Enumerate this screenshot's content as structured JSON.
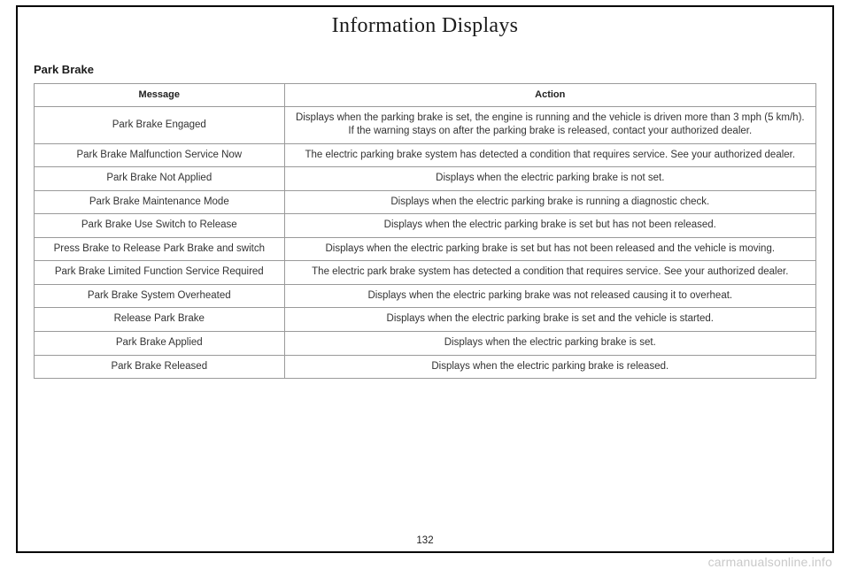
{
  "document": {
    "pageTitle": "Information Displays",
    "pageNumber": "132",
    "watermark": "carmanualsonline.info"
  },
  "section": {
    "title": "Park Brake",
    "table": {
      "headers": {
        "message": "Message",
        "action": "Action"
      },
      "rows": [
        {
          "message": "Park Brake Engaged",
          "action": "Displays when the parking brake is set, the engine is running and the vehicle is driven more than 3 mph (5 km/h). If the warning stays on after the parking brake is released, contact your authorized dealer."
        },
        {
          "message": "Park Brake Malfunction Service Now",
          "action": "The electric parking brake system has detected a condition that requires service. See your authorized dealer."
        },
        {
          "message": "Park Brake Not Applied",
          "action": "Displays when the electric parking brake is not set."
        },
        {
          "message": "Park Brake Maintenance Mode",
          "action": "Displays when the electric parking brake is running a diagnostic check."
        },
        {
          "message": "Park Brake Use Switch to Release",
          "action": "Displays when the electric parking brake is set but has not been released."
        },
        {
          "message": "Press Brake to Release Park Brake and switch",
          "action": "Displays when the electric parking brake is set but has not been released and the vehicle is moving."
        },
        {
          "message": "Park Brake Limited Function Service Required",
          "action": "The electric park brake system has detected a condition that requires service. See your authorized dealer."
        },
        {
          "message": "Park Brake System Overheated",
          "action": "Displays when the electric parking brake was not released causing it to overheat."
        },
        {
          "message": "Release Park Brake",
          "action": "Displays when the electric parking brake is set and the vehicle is started."
        },
        {
          "message": "Park Brake Applied",
          "action": "Displays when the electric parking brake is set."
        },
        {
          "message": "Park Brake Released",
          "action": "Displays when the electric parking brake is released."
        }
      ]
    }
  }
}
